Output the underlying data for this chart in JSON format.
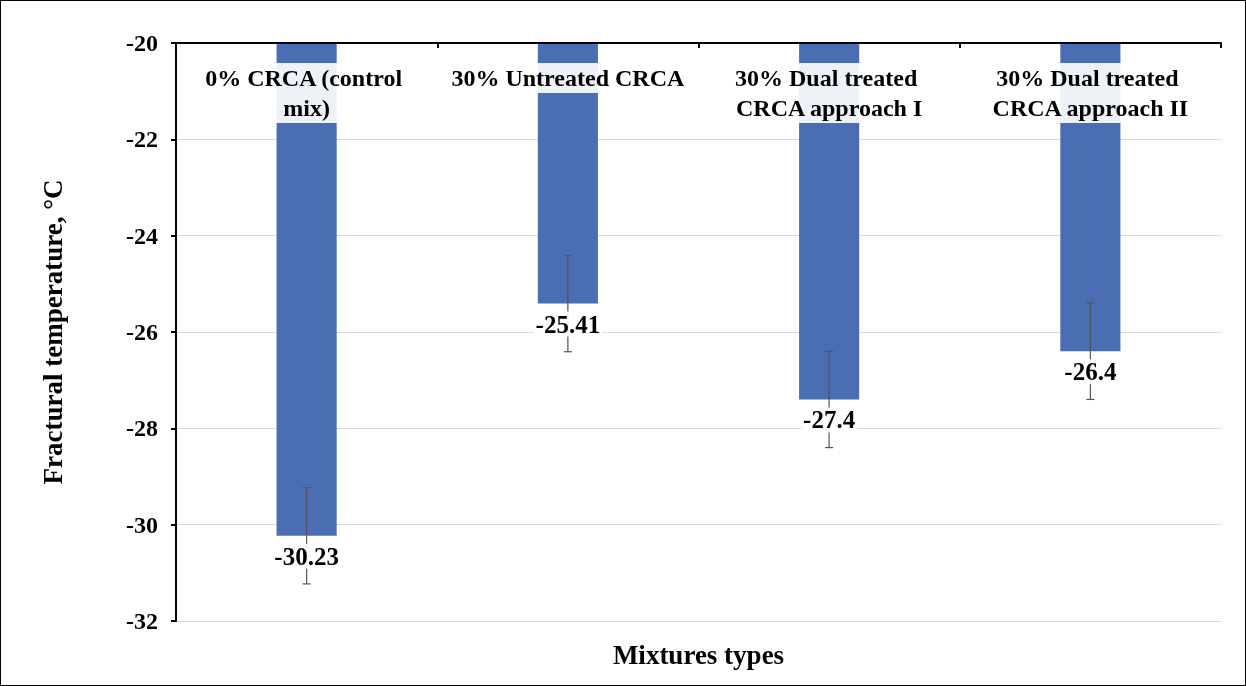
{
  "chart_data": {
    "type": "bar",
    "xlabel": "Mixtures types",
    "ylabel": "Fractural temperature, °C",
    "categories": [
      "0% CRCA (control mix)",
      "30% Untreated CRCA",
      "30% Dual treated CRCA approach I",
      "30% Dual treated CRCA approach II"
    ],
    "values": [
      -30.23,
      -25.41,
      -27.4,
      -26.4
    ],
    "errors": [
      1,
      1,
      1,
      1
    ],
    "color": "#4a6db3",
    "ylim": [
      -32,
      -20
    ],
    "yticks": [
      -32,
      -30,
      -28,
      -26,
      -24,
      -22,
      -20
    ],
    "grid": "y",
    "data_labels": true
  }
}
